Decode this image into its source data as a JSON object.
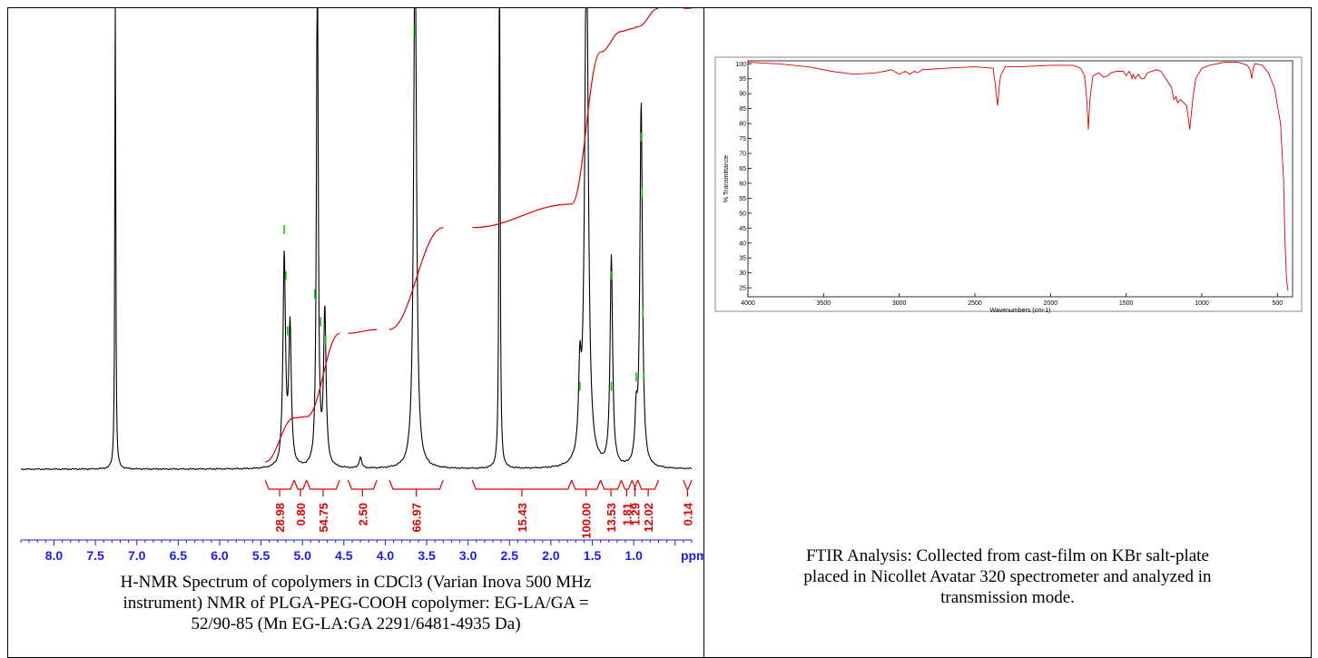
{
  "nmr": {
    "caption_lines": [
      "H-NMR Spectrum of copolymers in CDCl3 (Varian Inova 500 MHz",
      "instrument) NMR of PLGA-PEG-COOH copolymer: EG-LA/GA =",
      "52/90-85 (Mn EG-LA:GA 2291/6481-4935 Da)"
    ],
    "ppm_tick_labels": [
      "8.0",
      "7.5",
      "7.0",
      "6.5",
      "6.0",
      "5.5",
      "5.0",
      "4.5",
      "4.0",
      "3.5",
      "3.0",
      "2.5",
      "2.0",
      "1.5",
      "1.0"
    ],
    "unit_label": "ppm",
    "integral_labels": [
      "28.98",
      "0.80",
      "54.75",
      "2.50",
      "66.97",
      "15.43",
      "100.00",
      "13.53",
      "1.81",
      "1.29",
      "12.02",
      "0.14"
    ],
    "colors": {
      "spectrum": "#000000",
      "integral": "#e00000",
      "peak_marker": "#00c000",
      "axis": "#1a1aff"
    }
  },
  "ftir": {
    "caption_lines": [
      "FTIR Analysis: Collected from cast-film on KBr salt-plate",
      "placed in Nicollet Avatar 320 spectrometer and analyzed in",
      "transmission mode."
    ],
    "xlabel": "Wavenumbers (cm-1)",
    "ylabel": "% Transmittance",
    "x_tick_labels": [
      "4000",
      "3500",
      "3000",
      "2500",
      "2000",
      "1500",
      "1000",
      "500"
    ],
    "y_tick_labels": [
      "100",
      "95",
      "90",
      "85",
      "80",
      "75",
      "70",
      "65",
      "60",
      "55",
      "50",
      "45",
      "40",
      "35",
      "30",
      "25"
    ],
    "colors": {
      "trace": "#e00000",
      "frame": "#000000"
    }
  },
  "chart_data": [
    {
      "type": "line",
      "xlabel": "ppm",
      "ylabel": "",
      "xlim": [
        8.4,
        0.3
      ],
      "x_reversed": true,
      "series": [
        {
          "x": [
            7.26,
            5.22,
            5.15,
            4.82,
            4.73,
            4.3,
            3.64,
            2.62,
            1.65,
            1.57,
            1.27,
            0.97,
            0.91
          ],
          "values": [
            100,
            38,
            25,
            100,
            28,
            2,
            100,
            100,
            14,
            100,
            38,
            8,
            66
          ]
        }
      ],
      "integrals": [
        {
          "range": [
            5.45,
            5.1
          ],
          "value": 28.98
        },
        {
          "range": [
            5.1,
            4.95
          ],
          "value": 0.8
        },
        {
          "range": [
            4.95,
            4.55
          ],
          "value": 54.75
        },
        {
          "range": [
            4.45,
            4.1
          ],
          "value": 2.5
        },
        {
          "range": [
            3.95,
            3.3
          ],
          "value": 66.97
        },
        {
          "range": [
            2.95,
            1.75
          ],
          "value": 15.43
        },
        {
          "range": [
            1.75,
            1.4
          ],
          "value": 100.0
        },
        {
          "range": [
            1.4,
            1.15
          ],
          "value": 13.53
        },
        {
          "range": [
            1.15,
            1.02
          ],
          "value": 1.81
        },
        {
          "range": [
            1.02,
            0.95
          ],
          "value": 1.29
        },
        {
          "range": [
            0.95,
            0.7
          ],
          "value": 12.02
        },
        {
          "range": [
            0.4,
            0.3
          ],
          "value": 0.14
        }
      ]
    },
    {
      "type": "line",
      "xlabel": "Wavenumbers (cm-1)",
      "ylabel": "% Transmittance",
      "xlim": [
        4000,
        400
      ],
      "ylim": [
        22,
        101
      ],
      "x_reversed": true,
      "series": [
        {
          "x": [
            4000,
            3800,
            3600,
            3450,
            3300,
            3150,
            3050,
            3000,
            2960,
            2930,
            2900,
            2880,
            2850,
            2700,
            2500,
            2380,
            2365,
            2350,
            2340,
            2330,
            2300,
            2200,
            2000,
            1850,
            1800,
            1775,
            1760,
            1750,
            1740,
            1720,
            1680,
            1650,
            1620,
            1600,
            1560,
            1520,
            1500,
            1480,
            1460,
            1455,
            1440,
            1420,
            1400,
            1380,
            1370,
            1360,
            1300,
            1270,
            1250,
            1200,
            1185,
            1170,
            1160,
            1140,
            1120,
            1100,
            1090,
            1080,
            1060,
            1040,
            1000,
            950,
            900,
            850,
            800,
            760,
            700,
            680,
            670,
            660,
            650,
            640,
            600,
            560,
            520,
            480,
            460,
            450,
            440,
            430
          ],
          "values": [
            100.5,
            100,
            99,
            97.5,
            96.5,
            97,
            98,
            96.5,
            97.5,
            96.5,
            97.5,
            97,
            98,
            98.5,
            99,
            98.5,
            93,
            86,
            92,
            96,
            99,
            99,
            99.5,
            99.5,
            98.5,
            96,
            88,
            78,
            88,
            96,
            97,
            95.5,
            96,
            97,
            97.5,
            97.5,
            96,
            97.5,
            95,
            96.5,
            95,
            96.5,
            95,
            95,
            96,
            97,
            98,
            97.5,
            96,
            92,
            88,
            89,
            87,
            88,
            87,
            86,
            82,
            78,
            88,
            95,
            98.5,
            99.5,
            100,
            100.5,
            100.5,
            100.5,
            99.5,
            98,
            95,
            98.5,
            100,
            100,
            99.5,
            97,
            92,
            80,
            62,
            40,
            28,
            24
          ]
        }
      ]
    }
  ]
}
